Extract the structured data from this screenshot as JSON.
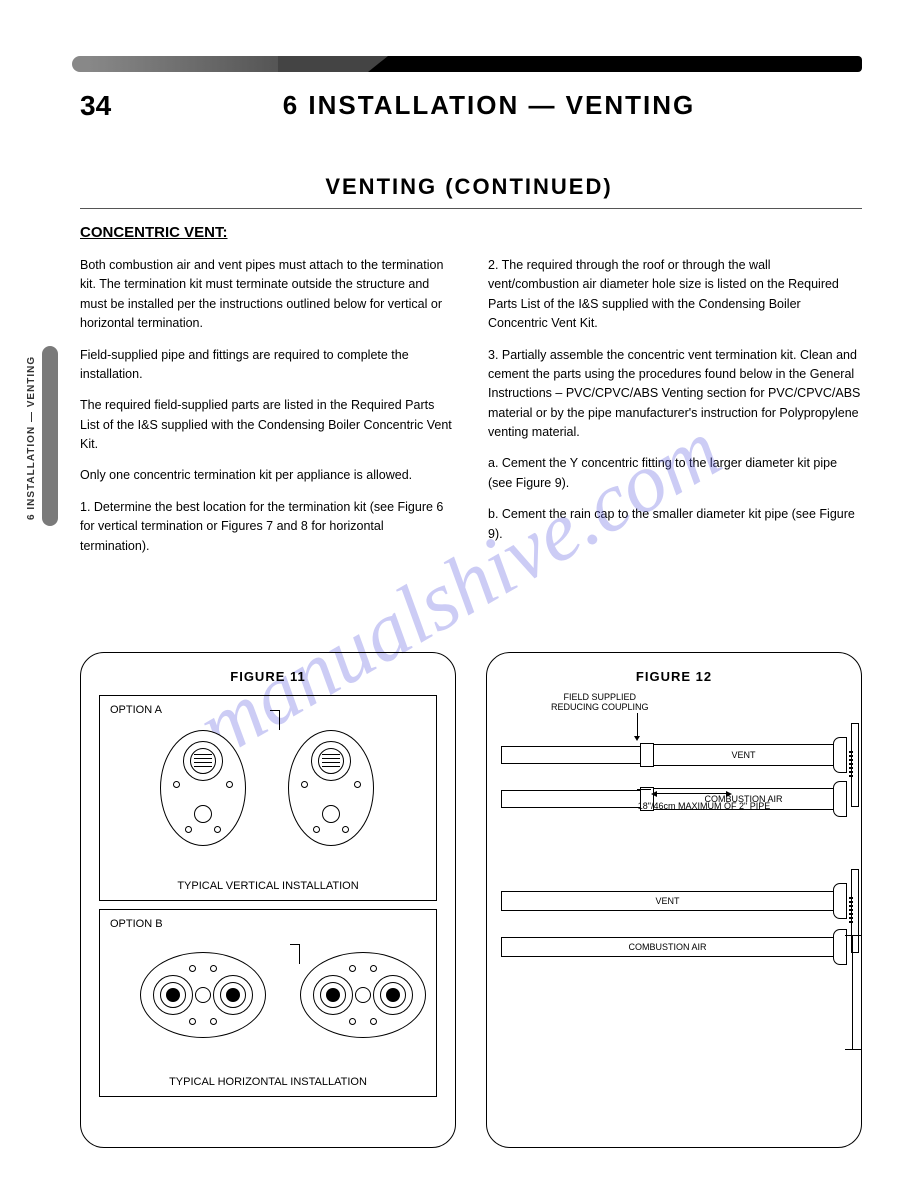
{
  "page_number": "34",
  "page_title": "6 INSTALLATION — VENTING",
  "continued": "VENTING (CONTINUED)",
  "subhead": "CONCENTRIC VENT:",
  "side_tab": "6  INSTALLATION — VENTING",
  "col_left": {
    "p1": "Both combustion air and vent pipes must attach to the termination kit. The termination kit must terminate outside the structure and must be installed per the instructions outlined below for vertical or horizontal termination.",
    "p2": "Field-supplied pipe and fittings are required to complete the installation.",
    "p3": "The required field-supplied parts are listed in the Required Parts List of the I&S supplied with the Condensing Boiler Concentric Vent Kit.",
    "p4": "Only one concentric termination kit per appliance is allowed.",
    "p5": "1. Determine the best location for the termination kit (see Figure 6 for vertical termination or Figures 7 and 8 for horizontal termination)."
  },
  "col_right": {
    "p1": "2. The required through the roof or through the wall vent/combustion air diameter hole size is listed on the Required Parts List of the I&S supplied with the Condensing Boiler Concentric Vent Kit.",
    "p2": "3. Partially assemble the concentric vent termination kit. Clean and cement the parts using the procedures found below in the General Instructions – PVC/CPVC/ABS Venting section for PVC/CPVC/ABS material or by the pipe manufacturer's instruction for Polypropylene venting material.",
    "p3": "a. Cement the Y concentric fitting to the larger diameter kit pipe (see Figure 9).",
    "p4": "b. Cement the rain cap to the smaller diameter kit pipe (see Figure 9)."
  },
  "fig11": {
    "number": "FIGURE 11",
    "optionA": "OPTION A",
    "optionB": "OPTION B",
    "captionA": "TYPICAL VERTICAL INSTALLATION",
    "captionB": "TYPICAL HORIZONTAL INSTALLATION"
  },
  "fig12": {
    "number": "FIGURE 12",
    "fs_label_1": "FIELD SUPPLIED",
    "fs_label_2": "REDUCING COUPLING",
    "vent": "VENT",
    "combustion": "COMBUSTION AIR",
    "max_label": "18\"/46cm MAXIMUM OF 2\" PIPE"
  },
  "watermark": "manualshive.com"
}
